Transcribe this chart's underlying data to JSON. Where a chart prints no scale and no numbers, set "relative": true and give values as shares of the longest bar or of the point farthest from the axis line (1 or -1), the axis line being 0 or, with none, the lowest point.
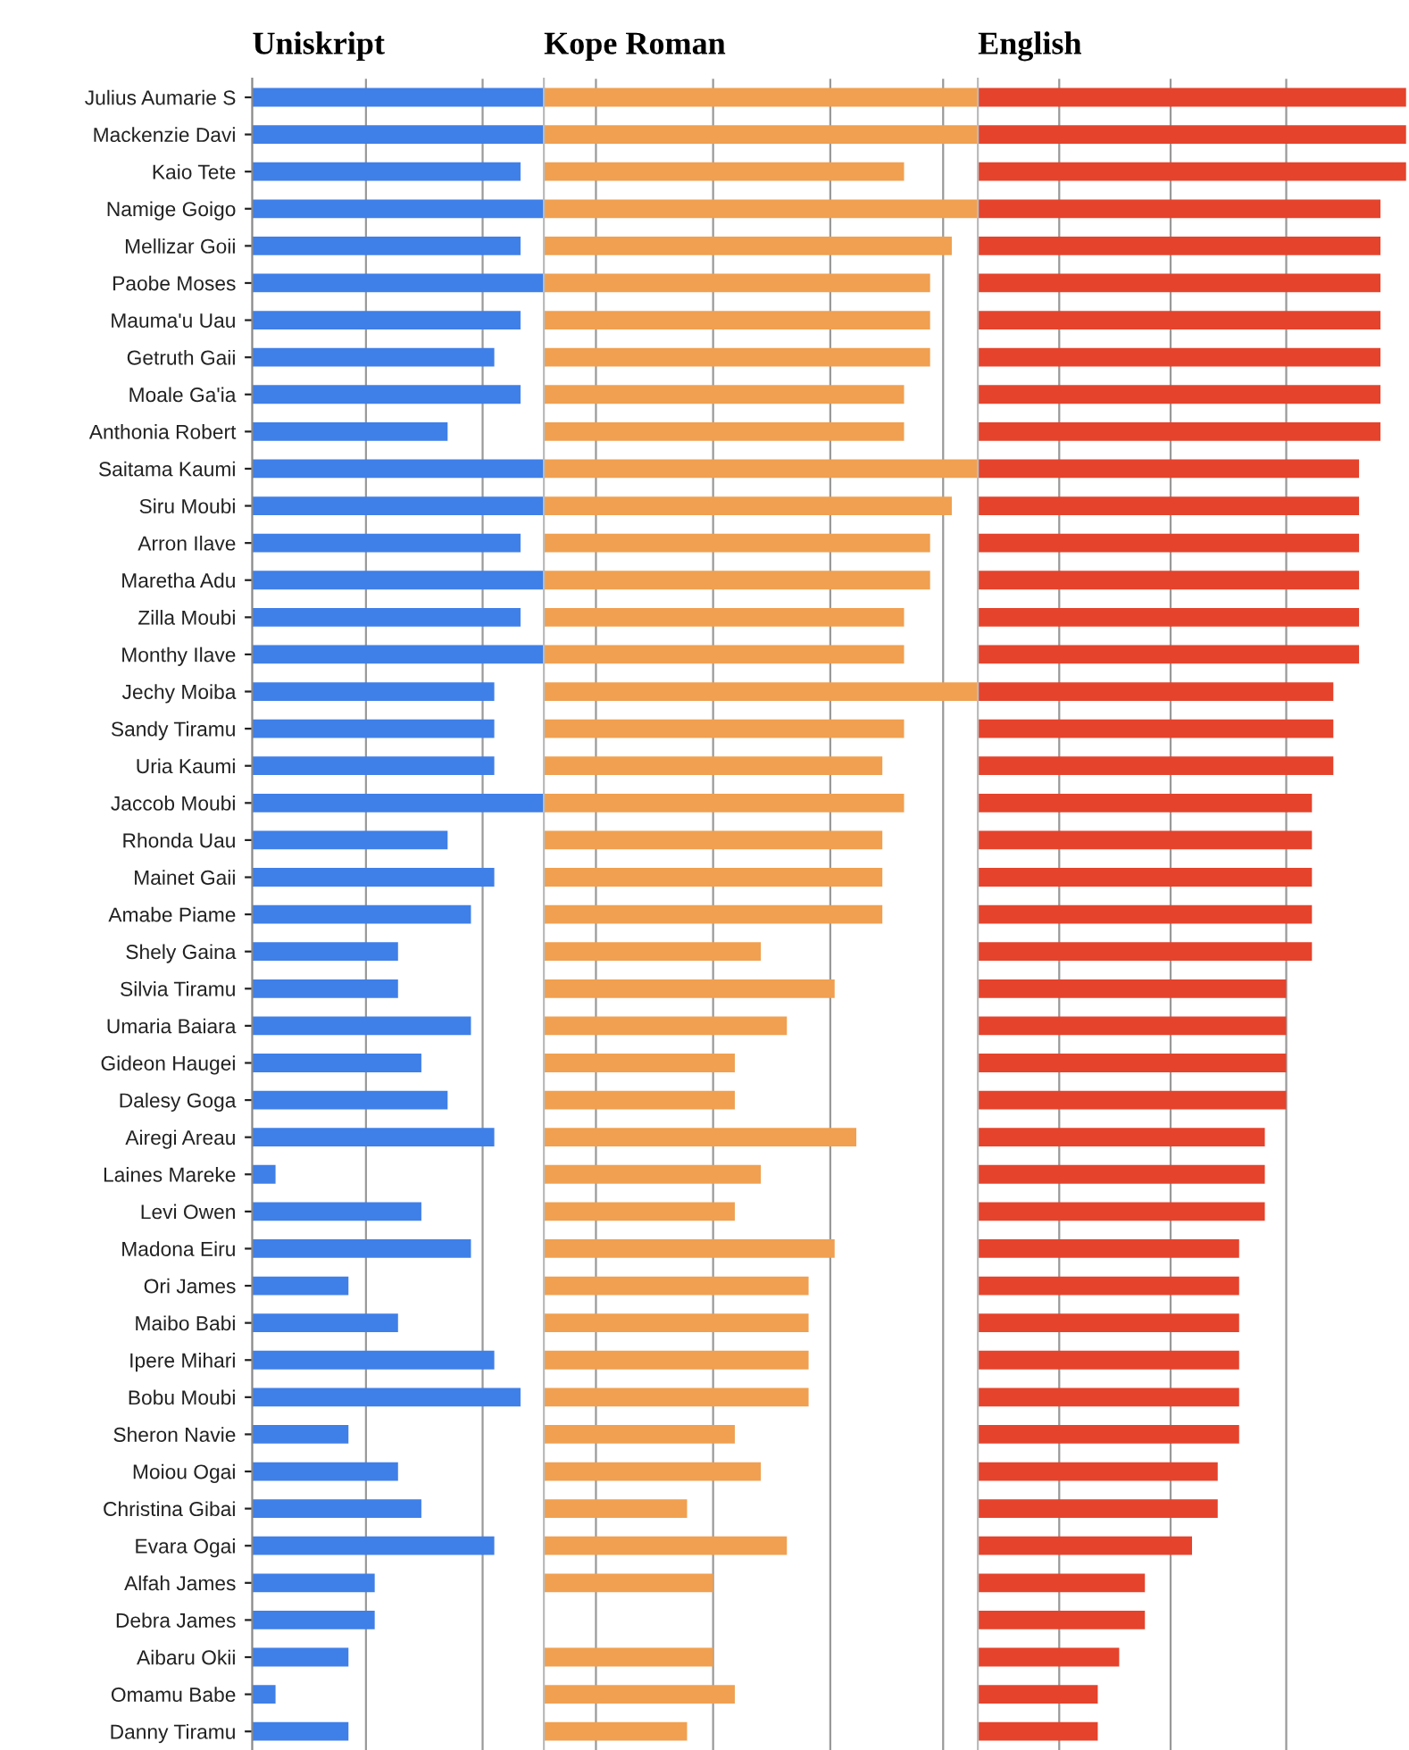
{
  "chart_data": [
    {
      "type": "bar",
      "orientation": "horizontal",
      "relative": true,
      "title": "Uniskript",
      "ref_lines": [
        {
          "axis": "x",
          "value": 0.39,
          "color": "#999999"
        },
        {
          "axis": "x",
          "value": 0.79,
          "color": "#999999"
        }
      ],
      "legend": false,
      "tick_labels": "y",
      "categories": [
        "Julius Aumarie S",
        "Mackenzie Davi",
        "Kaio Tete",
        "Namige Goigo",
        "Mellizar Goii",
        "Paobe Moses",
        "Mauma'u Uau",
        "Getruth Gaii",
        "Moale Ga'ia",
        "Anthonia Robert",
        "Saitama Kaumi",
        "Siru Moubi",
        "Arron Ilave",
        "Maretha Adu",
        "Zilla Moubi",
        "Monthy Ilave",
        "Jechy Moiba",
        "Sandy Tiramu",
        "Uria Kaumi",
        "Jaccob Moubi",
        "Rhonda Uau",
        "Mainet Gaii",
        "Amabe Piame",
        "Shely Gaina",
        "Silvia Tiramu",
        "Umaria Baiara",
        "Gideon Haugei",
        "Dalesy Goga",
        "Airegi Areau",
        "Laines Mareke",
        "Levi Owen",
        "Madona Eiru",
        "Ori James",
        "Maibo Babi",
        "Ipere Mihari",
        "Bobu Moubi",
        "Sheron Navie",
        "Moiou Ogai",
        "Christina Gibai",
        "Evara Ogai",
        "Alfah James",
        "Debra James",
        "Aibaru Okii",
        "Omamu Babe",
        "Danny Tiramu"
      ],
      "series": [
        {
          "color": "#3f7fe8",
          "values": [
            1,
            1,
            0.92,
            1,
            0.92,
            1,
            0.92,
            0.83,
            0.92,
            0.67,
            1,
            1,
            0.92,
            1,
            0.92,
            1,
            0.83,
            0.83,
            0.83,
            1,
            0.67,
            0.83,
            0.75,
            0.5,
            0.5,
            0.75,
            0.58,
            0.67,
            0.83,
            0.08,
            0.58,
            0.75,
            0.33,
            0.5,
            0.83,
            0.92,
            0.33,
            0.5,
            0.58,
            0.83,
            0.42,
            0.42,
            0.33,
            0.08,
            0.33
          ]
        }
      ]
    },
    {
      "type": "bar",
      "orientation": "horizontal",
      "relative": true,
      "title": "Kope Roman",
      "ref_lines": [
        {
          "axis": "x",
          "value": 0.12,
          "color": "#999999"
        },
        {
          "axis": "x",
          "value": 0.39,
          "color": "#999999"
        },
        {
          "axis": "x",
          "value": 0.66,
          "color": "#999999"
        },
        {
          "axis": "x",
          "value": 0.92,
          "color": "#999999"
        }
      ],
      "legend": false,
      "tick_labels": false,
      "series": [
        {
          "color": "#f0a050",
          "values": [
            1,
            1,
            0.83,
            1,
            0.94,
            0.89,
            0.89,
            0.89,
            0.83,
            0.83,
            1,
            0.94,
            0.89,
            0.89,
            0.83,
            0.83,
            1,
            0.83,
            0.78,
            0.83,
            0.78,
            0.78,
            0.78,
            0.5,
            0.67,
            0.56,
            0.44,
            0.44,
            0.72,
            0.5,
            0.44,
            0.67,
            0.61,
            0.61,
            0.61,
            0.61,
            0.44,
            0.5,
            0.33,
            0.56,
            0.39,
            null,
            0.39,
            0.44,
            0.33
          ]
        }
      ]
    },
    {
      "type": "bar",
      "orientation": "horizontal",
      "relative": true,
      "title": "English",
      "ref_lines": [
        {
          "axis": "x",
          "value": 0.19,
          "color": "#999999"
        },
        {
          "axis": "x",
          "value": 0.45,
          "color": "#999999"
        },
        {
          "axis": "x",
          "value": 0.72,
          "color": "#999999"
        }
      ],
      "legend": false,
      "tick_labels": false,
      "series": [
        {
          "color": "#e5432c",
          "values": [
            1,
            1,
            1,
            0.94,
            0.94,
            0.94,
            0.94,
            0.94,
            0.94,
            0.94,
            0.89,
            0.89,
            0.89,
            0.89,
            0.89,
            0.89,
            0.83,
            0.83,
            0.83,
            0.78,
            0.78,
            0.78,
            0.78,
            0.78,
            0.72,
            0.72,
            0.72,
            0.72,
            0.67,
            0.67,
            0.67,
            0.61,
            0.61,
            0.61,
            0.61,
            0.61,
            0.61,
            0.56,
            0.56,
            0.5,
            0.39,
            0.39,
            0.33,
            0.28,
            0.28
          ]
        }
      ]
    }
  ]
}
